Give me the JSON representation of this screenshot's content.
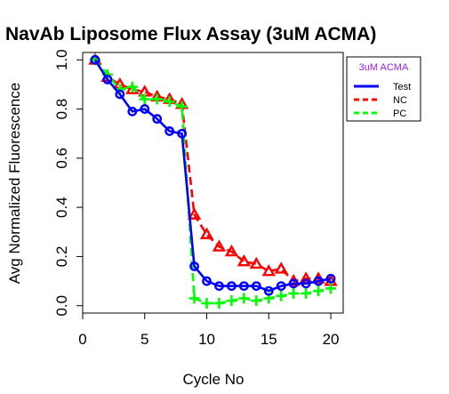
{
  "chart_data": {
    "type": "line",
    "title": "NavAb Liposome Flux Assay (3uM ACMA)",
    "xlabel": "Cycle No",
    "ylabel": "Avg Normalized Fluorescence",
    "xlim": [
      0,
      21
    ],
    "ylim": [
      -0.03,
      1.03
    ],
    "xticks": [
      0,
      5,
      10,
      15,
      20
    ],
    "yticks": [
      0.0,
      0.2,
      0.4,
      0.6,
      0.8,
      1.0
    ],
    "ytick_labels": [
      "0.0",
      "0.2",
      "0.4",
      "0.6",
      "0.8",
      "1.0"
    ],
    "grid": false,
    "legend": {
      "title": "3uM ACMA",
      "title_color": "#a020f0",
      "position": "top-right",
      "entries": [
        "Test",
        "NC",
        "PC"
      ]
    },
    "series": [
      {
        "name": "Test",
        "color": "#0000ff",
        "line": "solid",
        "marker": "circle",
        "x": [
          1,
          2,
          3,
          4,
          5,
          6,
          7,
          8,
          9,
          10,
          11,
          12,
          13,
          14,
          15,
          16,
          17,
          18,
          19,
          20
        ],
        "y": [
          1.0,
          0.92,
          0.86,
          0.79,
          0.8,
          0.76,
          0.71,
          0.7,
          0.16,
          0.1,
          0.08,
          0.08,
          0.08,
          0.08,
          0.06,
          0.08,
          0.09,
          0.09,
          0.1,
          0.11
        ]
      },
      {
        "name": "NC",
        "color": "#ff0000",
        "line": "dashed",
        "marker": "triangle",
        "x": [
          1,
          2,
          3,
          4,
          5,
          6,
          7,
          8,
          9,
          10,
          11,
          12,
          13,
          14,
          15,
          16,
          17,
          18,
          19,
          20
        ],
        "y": [
          1.0,
          0.93,
          0.9,
          0.88,
          0.87,
          0.85,
          0.84,
          0.82,
          0.37,
          0.29,
          0.24,
          0.22,
          0.18,
          0.17,
          0.14,
          0.15,
          0.1,
          0.11,
          0.11,
          0.1
        ]
      },
      {
        "name": "PC",
        "color": "#00ff00",
        "line": "dashed",
        "marker": "plus",
        "x": [
          1,
          2,
          3,
          4,
          5,
          6,
          7,
          8,
          9,
          10,
          11,
          12,
          13,
          14,
          15,
          16,
          17,
          18,
          19,
          20
        ],
        "y": [
          1.0,
          0.94,
          0.88,
          0.89,
          0.84,
          0.84,
          0.83,
          0.81,
          0.03,
          0.01,
          0.01,
          0.02,
          0.03,
          0.02,
          0.03,
          0.04,
          0.05,
          0.05,
          0.06,
          0.07
        ]
      }
    ]
  }
}
